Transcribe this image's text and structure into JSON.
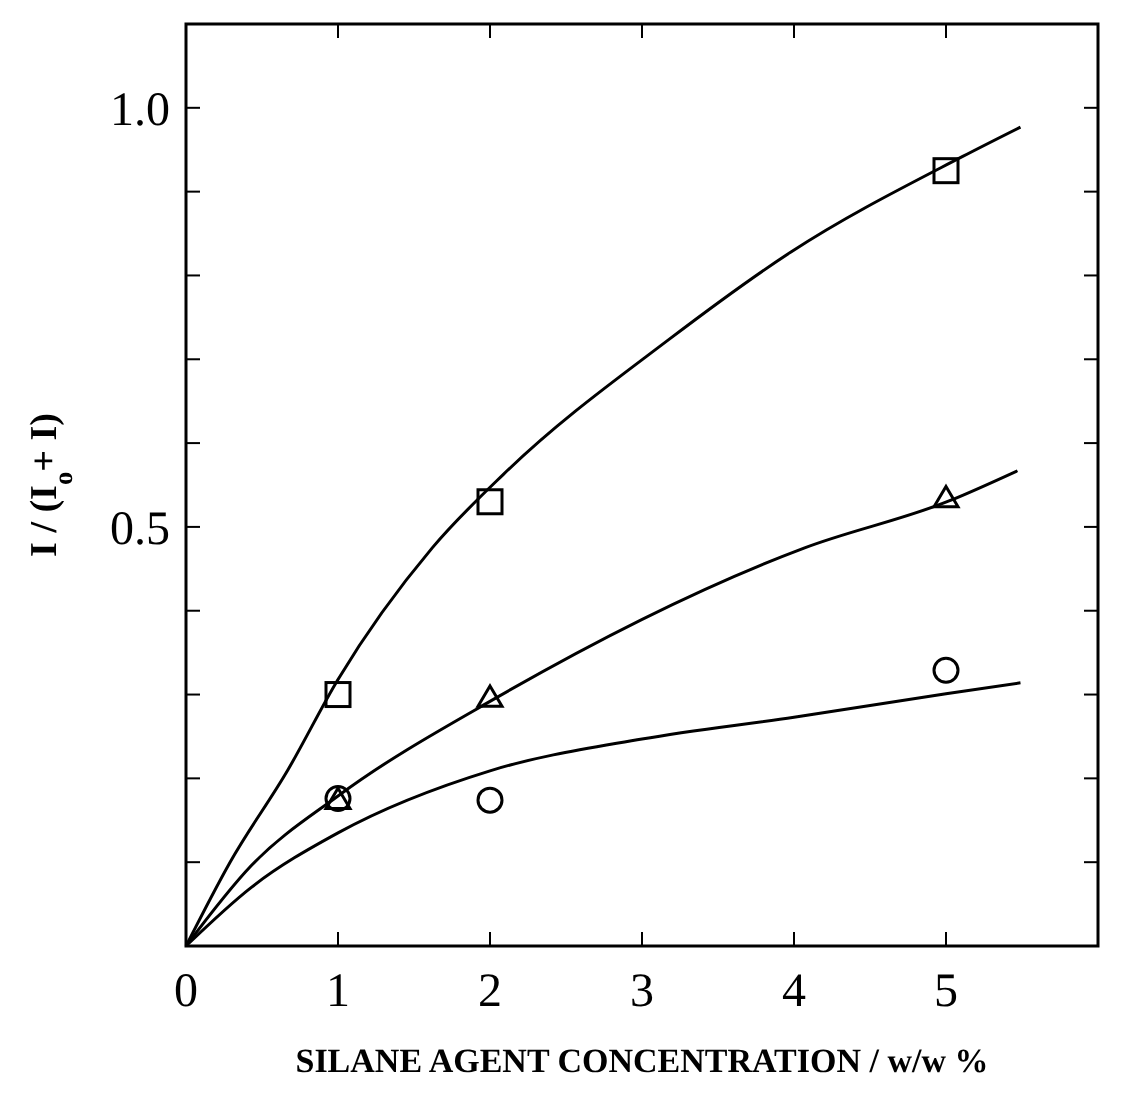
{
  "chart_data": {
    "type": "scatter",
    "xlabel": "SILANE AGENT CONCENTRATION / w/w %",
    "ylabel": "I / (I$_{o}$+ I)",
    "xlim": [
      0,
      6
    ],
    "xticks": [
      0,
      1,
      2,
      3,
      4,
      5,
      {
        "value": 6,
        "label": null
      }
    ],
    "ylim": [
      0,
      1.1
    ],
    "yticks": [
      {
        "value": 0.1,
        "label": null
      },
      {
        "value": 0.2,
        "label": null
      },
      {
        "value": 0.3,
        "label": null
      },
      {
        "value": 0.4,
        "label": null
      },
      {
        "value": 0.5,
        "label": "0.5"
      },
      {
        "value": 0.6,
        "label": null
      },
      {
        "value": 0.7,
        "label": null
      },
      {
        "value": 0.8,
        "label": null
      },
      {
        "value": 0.9,
        "label": null
      },
      {
        "value": 1,
        "label": "1.0"
      }
    ],
    "grid": false,
    "series": [
      {
        "marker": "square",
        "color": "#000000",
        "x": [
          1,
          2,
          5
        ],
        "values": [
          0.3,
          0.53,
          0.925
        ]
      },
      {
        "marker": "triangle",
        "color": "#000000",
        "x": [
          1,
          2,
          5
        ],
        "values": [
          0.174,
          0.296,
          0.534
        ]
      },
      {
        "marker": "circle",
        "color": "#000000",
        "x": [
          1,
          2,
          5
        ],
        "values": [
          0.176,
          0.174,
          0.329
        ]
      },
      {
        "type": "line",
        "marker": "none",
        "line_style": "solid",
        "color": "#000000",
        "x": [
          0,
          0.29,
          0.67,
          1,
          1.62,
          2.09,
          3.18,
          3.98,
          5.11,
          5.49
        ],
        "values": [
          0,
          0.1,
          0.21,
          0.318,
          0.475,
          0.563,
          0.724,
          0.828,
          0.942,
          0.977
        ]
      },
      {
        "type": "line",
        "marker": "none",
        "line_style": "solid",
        "color": "#000000",
        "x": [
          0,
          0.43,
          1,
          2.04,
          4.07,
          5.02,
          5.47
        ],
        "values": [
          0,
          0.096,
          0.179,
          0.296,
          0.475,
          0.531,
          0.567
        ]
      },
      {
        "type": "line",
        "marker": "none",
        "line_style": "solid",
        "color": "#000000",
        "x": [
          0,
          0.43,
          1,
          2,
          3,
          4,
          5,
          5.49
        ],
        "values": [
          0,
          0.07,
          0.135,
          0.209,
          0.247,
          0.273,
          0.301,
          0.314
        ]
      }
    ]
  }
}
